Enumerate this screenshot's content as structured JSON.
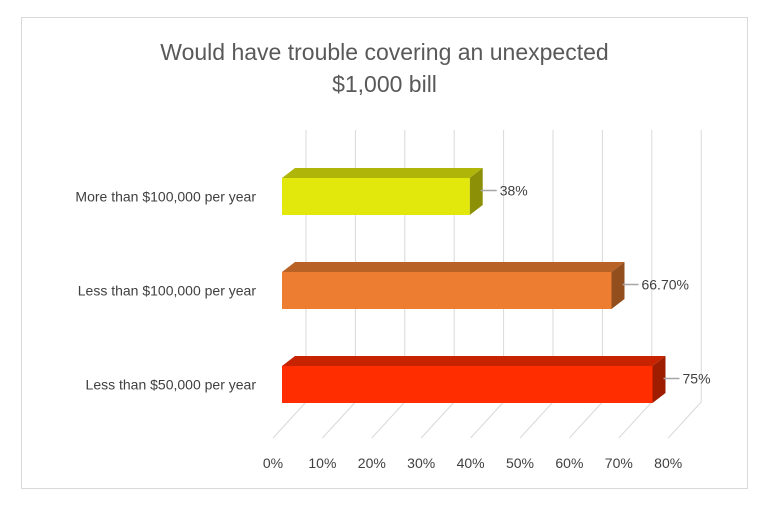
{
  "chart_data": {
    "type": "bar",
    "orientation": "horizontal",
    "style": "3d",
    "title_lines": [
      "Would have trouble covering an unexpected",
      "$1,000 bill"
    ],
    "categories": [
      "More than $100,000 per year",
      "Less than $100,000 per year",
      "Less than $50,000 per year"
    ],
    "values": [
      38,
      66.7,
      75
    ],
    "data_labels": [
      "38%",
      "66.70%",
      "75%"
    ],
    "bar_colors": [
      "#e2e80b",
      "#ed7d31",
      "#ff2d00"
    ],
    "xlim": [
      0,
      80
    ],
    "xticks": [
      "0%",
      "10%",
      "20%",
      "30%",
      "40%",
      "50%",
      "60%",
      "70%",
      "80%"
    ],
    "grid": true,
    "legend": "none",
    "xlabel": "",
    "ylabel": ""
  }
}
